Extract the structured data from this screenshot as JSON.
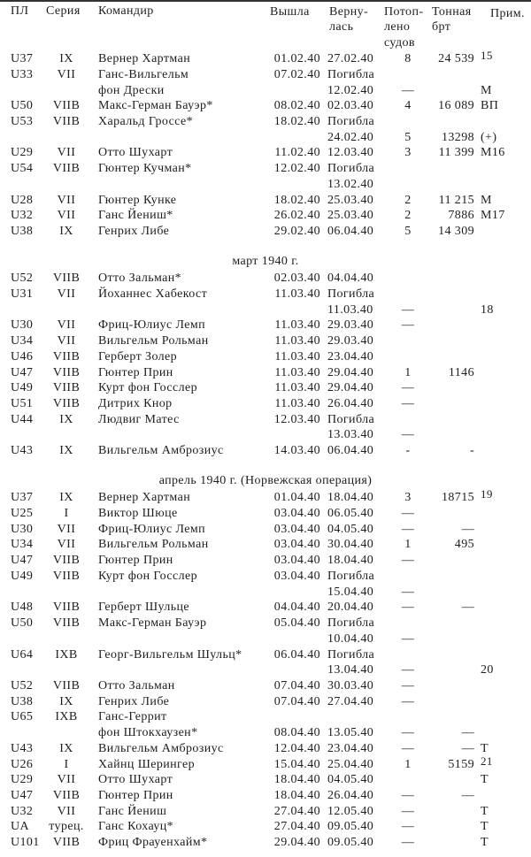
{
  "header": {
    "pl": "ПЛ",
    "series": "Серия",
    "commander": "Командир",
    "out": "Вышла",
    "ret": [
      "Верну-",
      "лась"
    ],
    "sunk": [
      "Потоп-",
      "лено",
      "судов"
    ],
    "tonnage": [
      "Тонная",
      "брт"
    ],
    "note": "Прим."
  },
  "sections": [
    {
      "title": "",
      "rows": [
        {
          "pl": "U37",
          "series": "IX",
          "commander": "Вернер Хартман",
          "out": "01.02.40",
          "ret": "27.02.40",
          "sunk": "8",
          "tonnage": "24 539",
          "note": "15",
          "sup": true
        },
        {
          "pl": "U33",
          "series": "VII",
          "commander": "Ганс-Вильгельм",
          "out": "07.02.40",
          "ret": "Погибла"
        },
        {
          "commander": "фон Дрески",
          "ret": "12.02.40",
          "sunk": "—",
          "note": "М"
        },
        {
          "pl": "U50",
          "series": "VIIB",
          "commander": "Макс-Герман Бауэр*",
          "out": "08.02.40",
          "ret": "02.03.40",
          "sunk": "4",
          "tonnage": "16 089",
          "note": "ВП"
        },
        {
          "pl": "U53",
          "series": "VIIB",
          "commander": "Харальд Гроссе*",
          "out": "18.02.40",
          "ret": "Погибла"
        },
        {
          "ret": "24.02.40",
          "sunk": "5",
          "tonnage": "13298",
          "note": "(+)"
        },
        {
          "pl": "U29",
          "series": "VII",
          "commander": "Отто Шухарт",
          "out": "11.02.40",
          "ret": "12.03.40",
          "sunk": "3",
          "tonnage": "11 399",
          "note": "М16"
        },
        {
          "pl": "U54",
          "series": "VIIB",
          "commander": "Гюнтер Кучман*",
          "out": "12.02.40",
          "ret": "Погибла"
        },
        {
          "ret": "13.02.40"
        },
        {
          "pl": "U28",
          "series": "VII",
          "commander": "Гюнтер Кунке",
          "out": "18.02.40",
          "ret": "25.03.40",
          "sunk": "2",
          "tonnage": "11 215",
          "note": "М"
        },
        {
          "pl": "U32",
          "series": "VII",
          "commander": "Ганс Йениш*",
          "out": "26.02.40",
          "ret": "25.03.40",
          "sunk": "2",
          "tonnage": "7886",
          "note": "М17"
        },
        {
          "pl": "U38",
          "series": "IX",
          "commander": "Генрих Либе",
          "out": "29.02.40",
          "ret": "06.04.40",
          "sunk": "5",
          "tonnage": "14 309"
        }
      ]
    },
    {
      "title": "март 1940 г.",
      "rows": [
        {
          "pl": "U52",
          "series": "VIIB",
          "commander": "Отто Зальман*",
          "out": "02.03.40",
          "ret": "04.04.40"
        },
        {
          "pl": "U31",
          "series": "VII",
          "commander": "Йоханнес Хабекост",
          "out": "11.03.40",
          "ret": "Погибла"
        },
        {
          "ret": "11.03.40",
          "sunk": "—",
          "note": "18"
        },
        {
          "pl": "U30",
          "series": "VII",
          "commander": "Фриц-Юлиус Лемп",
          "out": "11.03.40",
          "ret": "29.03.40",
          "sunk": "—"
        },
        {
          "pl": "U34",
          "series": "VII",
          "commander": "Вильгельм Рольман",
          "out": "11.03.40",
          "ret": "29.03.40"
        },
        {
          "pl": "U46",
          "series": "VIIB",
          "commander": "Герберт Золер",
          "out": "11.03.40",
          "ret": "23.04.40"
        },
        {
          "pl": "U47",
          "series": "VIIB",
          "commander": "Гюнтер Прин",
          "out": "11.03.40",
          "ret": "29.04.40",
          "sunk": "1",
          "tonnage": "1146"
        },
        {
          "pl": "U49",
          "series": "VIIB",
          "commander": "Курт фон Госслер",
          "out": "11.03.40",
          "ret": "29.04.40",
          "sunk": "—"
        },
        {
          "pl": "U51",
          "series": "VIIB",
          "commander": "Дитрих Кнор",
          "out": "11.03.40",
          "ret": "26.04.40",
          "sunk": "—"
        },
        {
          "pl": "U44",
          "series": "IX",
          "commander": "Людвиг Матес",
          "out": "12.03.40",
          "ret": "Погибла"
        },
        {
          "ret": "13.03.40",
          "sunk": "—"
        },
        {
          "pl": "U43",
          "series": "IX",
          "commander": "Вильгельм Амброзиус",
          "out": "14.03.40",
          "ret": "06.04.40",
          "sunk": "-",
          "tonnage": "-"
        }
      ]
    },
    {
      "title": "апрель 1940 г. (Норвежская операция)",
      "rows": [
        {
          "pl": "U37",
          "series": "IX",
          "commander": "Вернер Хартман",
          "out": "01.04.40",
          "ret": "18.04.40",
          "sunk": "3",
          "tonnage": "18715",
          "note": "19",
          "sup": true
        },
        {
          "pl": "U25",
          "series": "I",
          "commander": "Виктор Шюце",
          "out": "03.04.40",
          "ret": "06.05.40",
          "sunk": "—"
        },
        {
          "pl": "U30",
          "series": "VII",
          "commander": "Фриц-Юлиус Лемп",
          "out": "03.04.40",
          "ret": "04.05.40",
          "sunk": "—",
          "tonnage": "—"
        },
        {
          "pl": "U34",
          "series": "VII",
          "commander": "Вильгельм Рольман",
          "out": "03.04.40",
          "ret": "30.04.40",
          "sunk": "1",
          "tonnage": "495"
        },
        {
          "pl": "U47",
          "series": "VIIB",
          "commander": "Гюнтер Прин",
          "out": "03.04.40",
          "ret": "18.04.40",
          "sunk": "—"
        },
        {
          "pl": "U49",
          "series": "VIIB",
          "commander": "Курт фон Госслер",
          "out": "03.04.40",
          "ret": "Погибла"
        },
        {
          "ret": "15.04.40",
          "sunk": "—"
        },
        {
          "pl": "U48",
          "series": "VIIB",
          "commander": "Герберт Шульце",
          "out": "04.04.40",
          "ret": "20.04.40",
          "sunk": "—",
          "tonnage": "—"
        },
        {
          "pl": "U50",
          "series": "VIIB",
          "commander": "Макс-Герман Бауэр",
          "out": "05.04.40",
          "ret": "Погибла"
        },
        {
          "ret": "10.04.40",
          "sunk": "—"
        },
        {
          "pl": "U64",
          "series": "IXB",
          "commander": "Георг-Вильгельм Шульц*",
          "out": "06.04.40",
          "ret": "Погибла"
        },
        {
          "ret": "13.04.40",
          "sunk": "—",
          "note": "20"
        },
        {
          "pl": "U52",
          "series": "VIIB",
          "commander": "Отто Зальман",
          "out": "07.04.40",
          "ret": "30.03.40",
          "sunk": "—"
        },
        {
          "pl": "U38",
          "series": "IX",
          "commander": "Генрих Либе",
          "out": "07.04.40",
          "ret": "27.04.40",
          "sunk": "—"
        },
        {
          "pl": "U65",
          "series": "IXB",
          "commander": "Ганс-Геррит"
        },
        {
          "commander": "фон Штокхаузен*",
          "out": "08.04.40",
          "ret": "13.05.40",
          "sunk": "—",
          "tonnage": "—"
        },
        {
          "pl": "U43",
          "series": "IX",
          "commander": "Вильгельм Амброзиус",
          "out": "12.04.40",
          "ret": "23.04.40",
          "sunk": "—",
          "tonnage": "—",
          "note": "Т"
        },
        {
          "pl": "U26",
          "series": "I",
          "commander": "Хайнц Шерингер",
          "out": "15.04.40",
          "ret": "25.04.40",
          "sunk": "1",
          "tonnage": "5159",
          "note": "21",
          "sup": true
        },
        {
          "pl": "U29",
          "series": "VII",
          "commander": "Отто Шухарт",
          "out": "18.04.40",
          "ret": "04.05.40",
          "note": "Т"
        },
        {
          "pl": "U47",
          "series": "VIIB",
          "commander": "Гюнтер Прин",
          "out": "18.04.40",
          "ret": "26.04.40",
          "sunk": "—",
          "tonnage": "—"
        },
        {
          "pl": "U32",
          "series": "VII",
          "commander": "Ганс Йениш",
          "out": "27.04.40",
          "ret": "12.05.40",
          "sunk": "—",
          "note": "Т"
        },
        {
          "pl": "UA",
          "series": "турец.",
          "commander": "Ганс Кохауц*",
          "out": "27.04.40",
          "ret": "09.05.40",
          "sunk": "—",
          "note": "Т"
        },
        {
          "pl": "U101",
          "series": "VIIB",
          "commander": "Фриц Фрауенхайм*",
          "out": "29.04.40",
          "ret": "09.05.40",
          "sunk": "—",
          "note": "Т"
        }
      ]
    }
  ]
}
